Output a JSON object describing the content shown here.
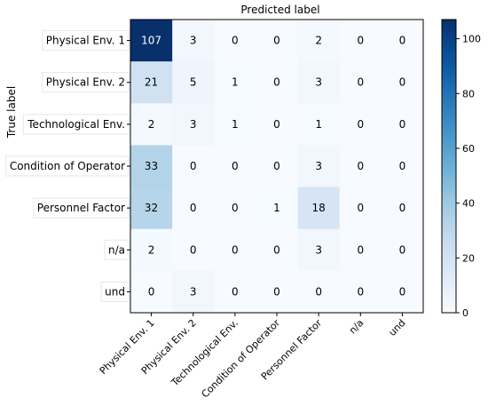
{
  "chart_data": {
    "type": "heatmap",
    "xlabel": "Predicted label",
    "ylabel": "True label",
    "x_categories": [
      "Physical Env. 1",
      "Physical Env. 2",
      "Technological Env.",
      "Condition of Operator",
      "Personnel Factor",
      "n/a",
      "und"
    ],
    "y_categories": [
      "Physical Env. 1",
      "Physical Env. 2",
      "Technological Env.",
      "Condition of Operator",
      "Personnel Factor",
      "n/a",
      "und"
    ],
    "values": [
      [
        107,
        3,
        0,
        0,
        2,
        0,
        0
      ],
      [
        21,
        5,
        1,
        0,
        3,
        0,
        0
      ],
      [
        2,
        3,
        1,
        0,
        1,
        0,
        0
      ],
      [
        33,
        0,
        0,
        0,
        3,
        0,
        0
      ],
      [
        32,
        0,
        0,
        1,
        18,
        0,
        0
      ],
      [
        2,
        0,
        0,
        0,
        3,
        0,
        0
      ],
      [
        0,
        3,
        0,
        0,
        0,
        0,
        0
      ]
    ],
    "colormap": "Blues",
    "vmin": 0,
    "vmax": 107,
    "colorbar_ticks": [
      0,
      20,
      40,
      60,
      80,
      100
    ]
  }
}
